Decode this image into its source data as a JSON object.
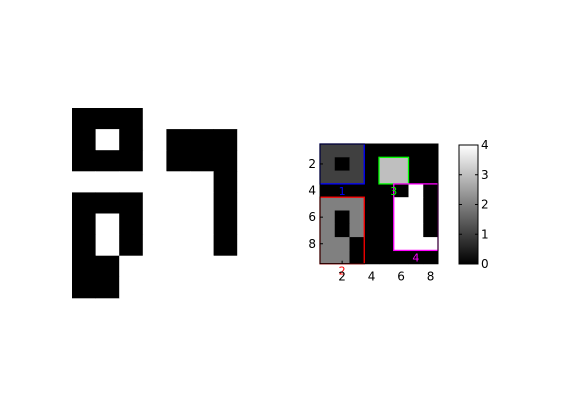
{
  "chart_data": [
    {
      "type": "heatmap",
      "title": "",
      "colormap": "binary",
      "colors": {
        "zero": "#000000",
        "one": "#ffffff"
      },
      "cells": [
        [
          1,
          1,
          1,
          0,
          0,
          0,
          0,
          0
        ],
        [
          1,
          0,
          1,
          0,
          1,
          1,
          1,
          0
        ],
        [
          1,
          1,
          1,
          0,
          1,
          1,
          1,
          0
        ],
        [
          0,
          0,
          0,
          0,
          0,
          0,
          1,
          0
        ],
        [
          1,
          1,
          1,
          0,
          0,
          0,
          1,
          0
        ],
        [
          1,
          0,
          1,
          0,
          0,
          0,
          1,
          0
        ],
        [
          1,
          0,
          1,
          0,
          0,
          0,
          1,
          0
        ],
        [
          1,
          1,
          0,
          0,
          0,
          0,
          0,
          0
        ],
        [
          1,
          1,
          0,
          0,
          0,
          0,
          0,
          0
        ]
      ]
    },
    {
      "type": "heatmap",
      "title": "",
      "colormap": "gray",
      "clim": [
        0,
        4
      ],
      "xticks": [
        "2",
        "4",
        "6",
        "8"
      ],
      "yticks": [
        "2",
        "4",
        "6",
        "8"
      ],
      "cells": [
        [
          1,
          1,
          1,
          0,
          0,
          0,
          0,
          0
        ],
        [
          1,
          0,
          1,
          0,
          3,
          3,
          0,
          0
        ],
        [
          1,
          1,
          1,
          0,
          3,
          3,
          0,
          0
        ],
        [
          0,
          0,
          0,
          0,
          0,
          0,
          4,
          0
        ],
        [
          2,
          2,
          2,
          0,
          0,
          4,
          4,
          0
        ],
        [
          2,
          0,
          2,
          0,
          0,
          4,
          4,
          0
        ],
        [
          2,
          0,
          2,
          0,
          0,
          4,
          4,
          0
        ],
        [
          2,
          2,
          0,
          0,
          0,
          4,
          4,
          4
        ],
        [
          2,
          2,
          0,
          0,
          0,
          0,
          0,
          0
        ]
      ],
      "regions": [
        {
          "label": "1",
          "color": "#0000ff"
        },
        {
          "label": "2",
          "color": "#ff0000"
        },
        {
          "label": "3",
          "color": "#00ff00"
        },
        {
          "label": "4",
          "color": "#ff00ff"
        }
      ],
      "colorbar": {
        "ticks": [
          "0",
          "1",
          "2",
          "3",
          "4"
        ],
        "range": [
          0,
          4
        ]
      }
    }
  ]
}
